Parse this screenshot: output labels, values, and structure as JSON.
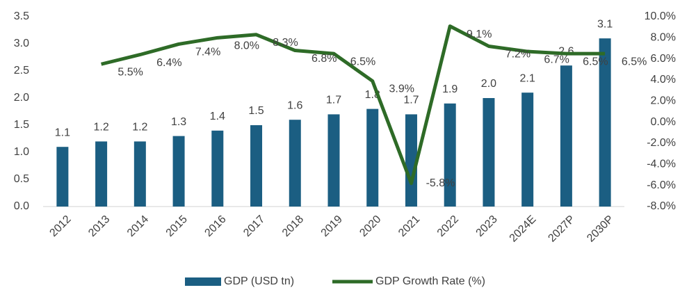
{
  "chart_data": {
    "type": "bar-line",
    "categories": [
      "2012",
      "2013",
      "2014",
      "2015",
      "2016",
      "2017",
      "2018",
      "2019",
      "2020",
      "2021",
      "2022",
      "2023",
      "2024E",
      "2027P",
      "2030P"
    ],
    "series": [
      {
        "name": "GDP (USD tn)",
        "color": "#1b5e82",
        "type": "bar",
        "values": [
          1.1,
          1.2,
          1.2,
          1.3,
          1.4,
          1.5,
          1.6,
          1.7,
          1.8,
          1.7,
          1.9,
          2.0,
          2.1,
          2.6,
          3.1
        ],
        "value_labels": [
          "1.1",
          "1.2",
          "1.2",
          "1.3",
          "1.4",
          "1.5",
          "1.6",
          "1.7",
          "1.8",
          "1.7",
          "1.9",
          "2.0",
          "2.1",
          "2.6",
          "3.1"
        ]
      },
      {
        "name": "GDP Growth Rate (%)",
        "color": "#2e6b27",
        "type": "line",
        "axis": "y2",
        "values": [
          null,
          5.5,
          6.4,
          7.4,
          8.0,
          8.3,
          6.8,
          6.5,
          3.9,
          -5.8,
          9.1,
          7.2,
          6.7,
          6.5,
          6.5
        ],
        "value_labels": [
          null,
          "5.5%",
          "6.4%",
          "7.4%",
          "8.0%",
          "8.3%",
          "6.8%",
          "6.5%",
          "3.9%",
          "-5.8%",
          "9.1%",
          "7.2%",
          "6.7%",
          "6.5%",
          "6.5%"
        ]
      }
    ],
    "ylim": [
      0,
      3.5
    ],
    "yticks": [
      {
        "value": 0,
        "label": "0.0"
      },
      {
        "value": 0.5,
        "label": "0.5"
      },
      {
        "value": 1,
        "label": "1.0"
      },
      {
        "value": 1.5,
        "label": "1.5"
      },
      {
        "value": 2,
        "label": "2.0"
      },
      {
        "value": 2.5,
        "label": "2.5"
      },
      {
        "value": 3,
        "label": "3.0"
      },
      {
        "value": 3.5,
        "label": "3.5"
      }
    ],
    "y2lim": [
      -8,
      10
    ],
    "y2ticks": [
      {
        "value": -8,
        "label": "-8.0%"
      },
      {
        "value": -6,
        "label": "-6.0%"
      },
      {
        "value": -4,
        "label": "-4.0%"
      },
      {
        "value": -2,
        "label": "-2.0%"
      },
      {
        "value": 0,
        "label": "0.0%"
      },
      {
        "value": 2,
        "label": "2.0%"
      },
      {
        "value": 4,
        "label": "4.0%"
      },
      {
        "value": 6,
        "label": "6.0%"
      },
      {
        "value": 8,
        "label": "8.0%"
      },
      {
        "value": 10,
        "label": "10.0%"
      }
    ],
    "legend": "bottom"
  }
}
